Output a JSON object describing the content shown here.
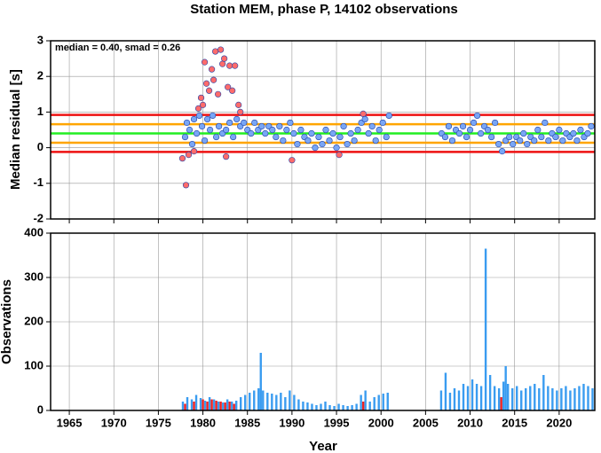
{
  "chart_data": [
    {
      "type": "scatter",
      "title": "Station MEM, phase P, 14102 observations",
      "ylabel": "Median residual [s]",
      "annotation": "median = 0.40, smad = 0.26",
      "xlim": [
        1962.9,
        2024
      ],
      "xticks": [
        1965,
        1970,
        1975,
        1980,
        1985,
        1990,
        1995,
        2000,
        2005,
        2010,
        2015,
        2020
      ],
      "ylim": [
        -2,
        3
      ],
      "yticks": [
        -2,
        -1,
        0,
        1,
        2,
        3
      ],
      "grid": true,
      "hlines": [
        {
          "value": 0.92,
          "color": "#ee1111"
        },
        {
          "value": -0.12,
          "color": "#ee1111"
        },
        {
          "value": 0.66,
          "color": "#ffa500"
        },
        {
          "value": 0.14,
          "color": "#ffa500"
        },
        {
          "value": 0.4,
          "color": "#22ee22"
        }
      ],
      "series": [
        {
          "color": "#ff6b6b",
          "x": [
            1977.7,
            1978.1,
            1978.4,
            1979.0,
            1979.5,
            1979.8,
            1980.0,
            1980.2,
            1980.4,
            1980.7,
            1981.0,
            1981.2,
            1981.4,
            1981.7,
            1982.0,
            1982.2,
            1982.4,
            1982.6,
            1982.8,
            1983.0,
            1983.3,
            1983.6,
            1984.0,
            1984.2,
            1990.0,
            1995.3,
            1998.0
          ],
          "values": [
            -0.3,
            -1.05,
            -0.2,
            -0.1,
            1.1,
            1.4,
            1.2,
            2.4,
            1.8,
            1.6,
            2.2,
            1.9,
            2.7,
            1.5,
            2.75,
            2.35,
            2.5,
            -0.25,
            1.7,
            2.3,
            1.6,
            2.3,
            1.2,
            1.0,
            -0.35,
            -0.2,
            0.95
          ]
        },
        {
          "color": "#79a6f5",
          "x": [
            1978.0,
            1978.2,
            1978.5,
            1978.8,
            1979.0,
            1979.3,
            1979.6,
            1979.9,
            1980.2,
            1980.5,
            1980.8,
            1981.1,
            1981.5,
            1981.8,
            1982.2,
            1982.6,
            1983.0,
            1983.4,
            1983.8,
            1984.2,
            1984.6,
            1985.0,
            1985.4,
            1985.8,
            1986.2,
            1986.6,
            1987.0,
            1987.4,
            1987.8,
            1988.2,
            1988.6,
            1989.0,
            1989.4,
            1989.8,
            1990.2,
            1990.6,
            1991.0,
            1991.4,
            1991.8,
            1992.2,
            1992.6,
            1993.0,
            1993.4,
            1993.8,
            1994.2,
            1994.6,
            1995.0,
            1995.4,
            1995.8,
            1996.2,
            1996.6,
            1997.0,
            1997.4,
            1997.8,
            1998.2,
            1998.6,
            1999.0,
            1999.4,
            1999.8,
            2000.2,
            2000.6,
            2000.9,
            2006.8,
            2007.2,
            2007.6,
            2008.0,
            2008.4,
            2008.8,
            2009.2,
            2009.6,
            2010.0,
            2010.4,
            2010.8,
            2011.2,
            2011.6,
            2012.0,
            2012.4,
            2012.8,
            2013.2,
            2013.6,
            2014.0,
            2014.4,
            2014.8,
            2015.2,
            2015.6,
            2016.0,
            2016.4,
            2016.8,
            2017.2,
            2017.6,
            2018.0,
            2018.4,
            2018.8,
            2019.2,
            2019.6,
            2020.0,
            2020.4,
            2020.8,
            2021.2,
            2021.6,
            2022.0,
            2022.4,
            2022.8,
            2023.2,
            2023.6
          ],
          "values": [
            0.3,
            0.7,
            0.5,
            0.1,
            0.8,
            0.4,
            0.9,
            0.6,
            0.2,
            0.8,
            0.5,
            0.9,
            0.3,
            0.6,
            0.4,
            0.5,
            0.7,
            0.3,
            0.8,
            0.6,
            0.7,
            0.5,
            0.4,
            0.7,
            0.5,
            0.6,
            0.4,
            0.6,
            0.5,
            0.3,
            0.6,
            0.2,
            0.5,
            0.7,
            0.4,
            0.1,
            0.5,
            0.3,
            0.2,
            0.4,
            0.0,
            0.3,
            0.1,
            0.5,
            0.2,
            0.4,
            0.0,
            0.3,
            0.6,
            0.1,
            0.4,
            0.2,
            0.5,
            0.7,
            0.8,
            0.4,
            0.6,
            0.2,
            0.5,
            0.7,
            0.3,
            0.9,
            0.4,
            0.3,
            0.6,
            0.2,
            0.5,
            0.4,
            0.6,
            0.3,
            0.5,
            0.7,
            0.9,
            0.4,
            0.6,
            0.5,
            0.3,
            0.7,
            0.1,
            -0.1,
            0.2,
            0.3,
            0.1,
            0.3,
            0.2,
            0.4,
            0.1,
            0.3,
            0.2,
            0.5,
            0.3,
            0.7,
            0.2,
            0.4,
            0.3,
            0.5,
            0.2,
            0.4,
            0.3,
            0.4,
            0.2,
            0.5,
            0.3,
            0.4,
            0.6
          ]
        }
      ]
    },
    {
      "type": "bar",
      "ylabel": "Observations",
      "xlabel": "Year",
      "xlim": [
        1962.9,
        2024
      ],
      "xticks": [
        1965,
        1970,
        1975,
        1980,
        1985,
        1990,
        1995,
        2000,
        2005,
        2010,
        2015,
        2020
      ],
      "ylim": [
        0,
        400
      ],
      "yticks": [
        0,
        100,
        200,
        300,
        400
      ],
      "grid": true,
      "series": [
        {
          "color": "#3a9cf0",
          "x": [
            1977.75,
            1978.25,
            1978.75,
            1979.25,
            1979.75,
            1980.25,
            1980.75,
            1981.25,
            1981.75,
            1982.25,
            1982.75,
            1983.25,
            1983.75,
            1984.25,
            1984.75,
            1985.25,
            1985.75,
            1986.25,
            1986.5,
            1986.75,
            1987.25,
            1987.75,
            1988.25,
            1988.75,
            1989.25,
            1989.75,
            1990.25,
            1990.75,
            1991.25,
            1991.75,
            1992.25,
            1992.75,
            1993.25,
            1993.75,
            1994.25,
            1994.75,
            1995.25,
            1995.75,
            1996.25,
            1996.75,
            1997.25,
            1997.75,
            1998.25,
            1998.75,
            1999.25,
            1999.75,
            2000.25,
            2000.75,
            2006.75,
            2007.25,
            2007.75,
            2008.25,
            2008.75,
            2009.25,
            2009.75,
            2010.25,
            2010.75,
            2011.25,
            2011.75,
            2012.25,
            2012.75,
            2013.25,
            2013.75,
            2014.0,
            2014.25,
            2014.75,
            2015.25,
            2015.75,
            2016.25,
            2016.75,
            2017.25,
            2017.75,
            2018.25,
            2018.75,
            2019.25,
            2019.75,
            2020.25,
            2020.75,
            2021.25,
            2021.75,
            2022.25,
            2022.75,
            2023.25,
            2023.75
          ],
          "values": [
            20,
            30,
            25,
            35,
            28,
            22,
            30,
            25,
            20,
            18,
            25,
            20,
            22,
            30,
            35,
            40,
            45,
            50,
            130,
            45,
            40,
            38,
            35,
            40,
            30,
            45,
            35,
            25,
            20,
            18,
            15,
            12,
            15,
            20,
            12,
            10,
            15,
            12,
            10,
            12,
            15,
            35,
            45,
            20,
            30,
            35,
            38,
            40,
            45,
            85,
            40,
            50,
            45,
            60,
            55,
            70,
            60,
            55,
            365,
            80,
            55,
            50,
            65,
            100,
            60,
            50,
            55,
            45,
            50,
            55,
            60,
            50,
            80,
            55,
            50,
            45,
            50,
            55,
            45,
            50,
            55,
            60,
            55,
            50
          ]
        },
        {
          "color": "#ee2222",
          "x": [
            1978.0,
            1979.0,
            1980.0,
            1980.5,
            1981.0,
            1981.5,
            1982.0,
            1982.5,
            1983.0,
            1983.5,
            1998.0,
            2013.5
          ],
          "values": [
            15,
            20,
            25,
            20,
            25,
            22,
            20,
            18,
            20,
            15,
            20,
            30
          ]
        }
      ]
    }
  ]
}
